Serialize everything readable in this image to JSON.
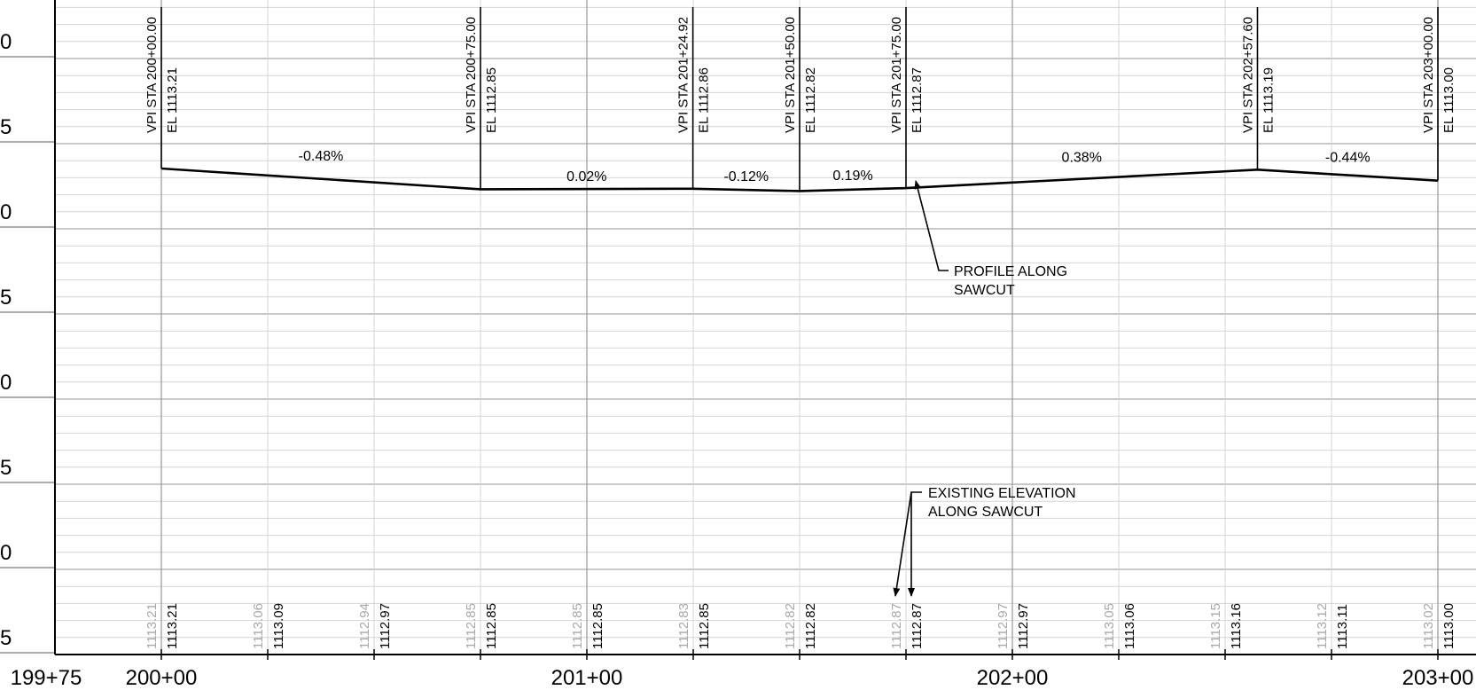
{
  "y_axis_labels": [
    "0",
    "5",
    "0",
    "5",
    "0",
    "5",
    "0",
    "5"
  ],
  "x_axis_labels": [
    "199+75",
    "200+00",
    "201+00",
    "202+00",
    "203+00"
  ],
  "vpi_points": [
    {
      "station": "VPI STA 200+00.00",
      "elevation": "EL 1113.21",
      "sta": 200.0,
      "el": 1113.21
    },
    {
      "station": "VPI STA 200+75.00",
      "elevation": "EL 1112.85",
      "sta": 200.75,
      "el": 1112.85
    },
    {
      "station": "VPI STA 201+24.92",
      "elevation": "EL 1112.86",
      "sta": 201.2492,
      "el": 1112.86
    },
    {
      "station": "VPI STA 201+50.00",
      "elevation": "EL 1112.82",
      "sta": 201.5,
      "el": 1112.82
    },
    {
      "station": "VPI STA 201+75.00",
      "elevation": "EL 1112.87",
      "sta": 201.75,
      "el": 1112.87
    },
    {
      "station": "VPI STA 202+57.60",
      "elevation": "EL 1113.19",
      "sta": 202.576,
      "el": 1113.19
    },
    {
      "station": "VPI STA 203+00.00",
      "elevation": "EL 1113.00",
      "sta": 203.0,
      "el": 1113.0
    }
  ],
  "grades": [
    "-0.48%",
    "0.02%",
    "-0.12%",
    "0.19%",
    "0.38%",
    "-0.44%"
  ],
  "annotations": {
    "profile_line1": "PROFILE ALONG",
    "profile_line2": "SAWCUT",
    "existing_line1": "EXISTING ELEVATION",
    "existing_line2": "ALONG SAWCUT"
  },
  "elevation_labels": [
    {
      "sta": 200.0,
      "existing": "1113.21",
      "proposed": "1113.21"
    },
    {
      "sta": 200.25,
      "existing": "1113.06",
      "proposed": "1113.09"
    },
    {
      "sta": 200.5,
      "existing": "1112.94",
      "proposed": "1112.97"
    },
    {
      "sta": 200.75,
      "existing": "1112.85",
      "proposed": "1112.85"
    },
    {
      "sta": 201.0,
      "existing": "1112.85",
      "proposed": "1112.85"
    },
    {
      "sta": 201.25,
      "existing": "1112.83",
      "proposed": "1112.85"
    },
    {
      "sta": 201.5,
      "existing": "1112.82",
      "proposed": "1112.82"
    },
    {
      "sta": 201.75,
      "existing": "1112.87",
      "proposed": "1112.87"
    },
    {
      "sta": 202.0,
      "existing": "1112.97",
      "proposed": "1112.97"
    },
    {
      "sta": 202.25,
      "existing": "1113.05",
      "proposed": "1113.06"
    },
    {
      "sta": 202.5,
      "existing": "1113.15",
      "proposed": "1113.16"
    },
    {
      "sta": 202.75,
      "existing": "1113.12",
      "proposed": "1113.11"
    },
    {
      "sta": 203.0,
      "existing": "1113.02",
      "proposed": "1113.00"
    }
  ],
  "colors": {
    "grid_major": "#a6a6a6",
    "grid_minor": "#d4d4d4",
    "line": "#000000",
    "existing_text": "#a9a9a9"
  }
}
